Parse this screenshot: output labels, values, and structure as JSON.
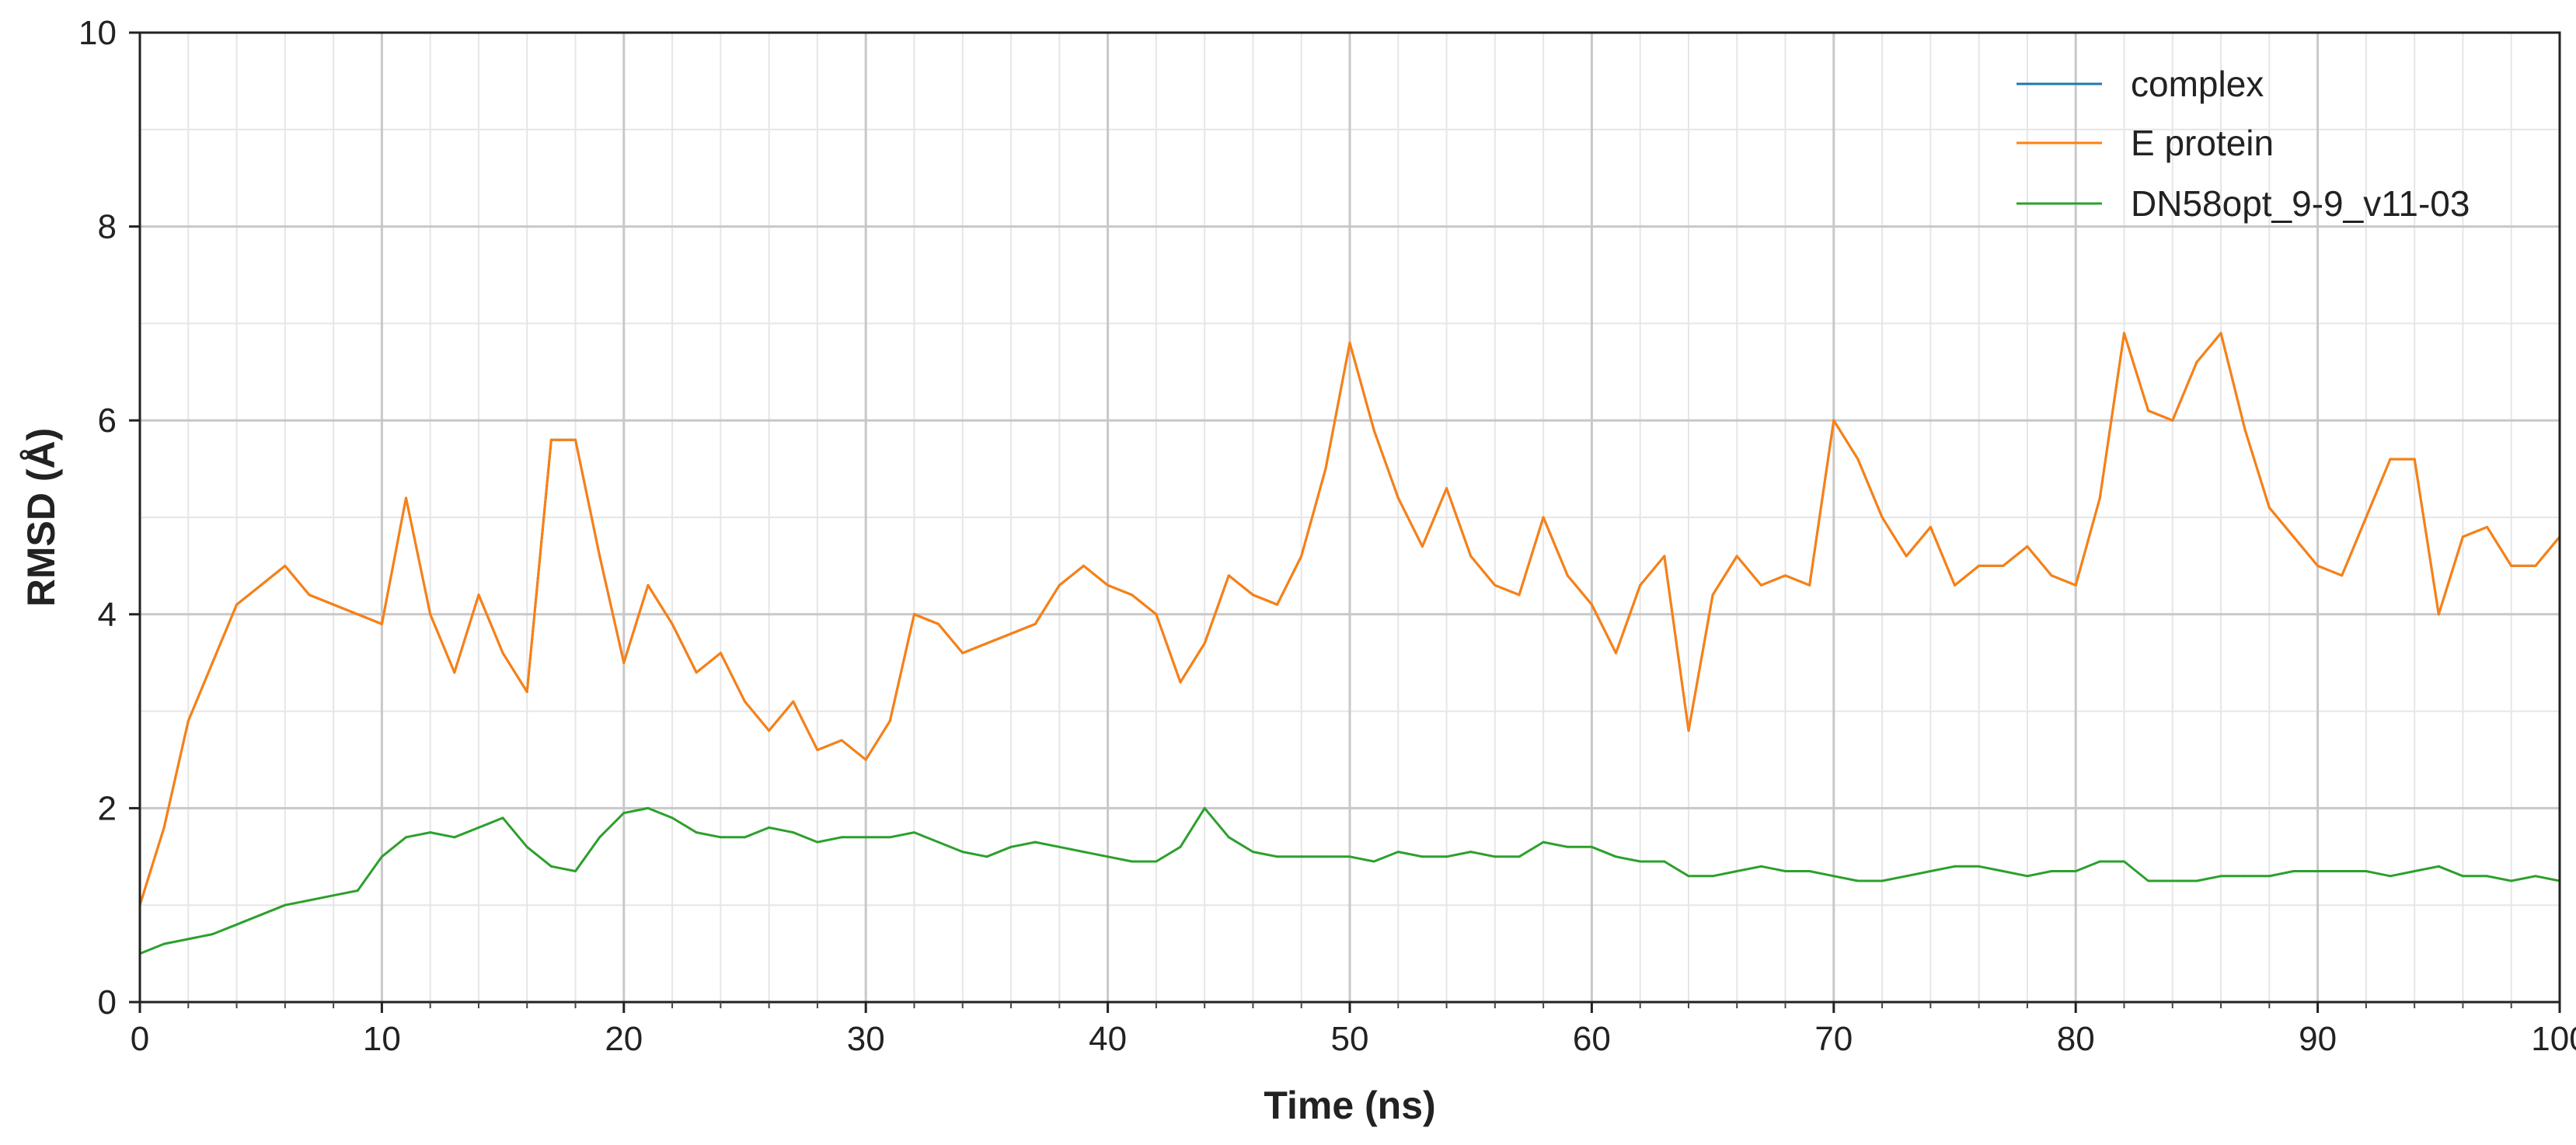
{
  "chart_data": {
    "type": "line",
    "title": "",
    "xlabel": "Time (ns)",
    "ylabel": "RMSD (Å)",
    "xlim": [
      0,
      100
    ],
    "ylim": [
      0,
      10
    ],
    "x_ticks": [
      "0",
      "10",
      "20",
      "30",
      "40",
      "50",
      "60",
      "70",
      "80",
      "90",
      "100"
    ],
    "y_ticks": [
      "0",
      "2",
      "4",
      "6",
      "8",
      "10"
    ],
    "grid": "major and minor",
    "legend_position": "top-right",
    "x": [
      0,
      1,
      2,
      3,
      4,
      5,
      6,
      7,
      8,
      9,
      10,
      11,
      12,
      13,
      14,
      15,
      16,
      17,
      18,
      19,
      20,
      21,
      22,
      23,
      24,
      25,
      26,
      27,
      28,
      29,
      30,
      31,
      32,
      33,
      34,
      35,
      36,
      37,
      38,
      39,
      40,
      41,
      42,
      43,
      44,
      45,
      46,
      47,
      48,
      49,
      50,
      51,
      52,
      53,
      54,
      55,
      56,
      57,
      58,
      59,
      60,
      61,
      62,
      63,
      64,
      65,
      66,
      67,
      68,
      69,
      70,
      71,
      72,
      73,
      74,
      75,
      76,
      77,
      78,
      79,
      80,
      81,
      82,
      83,
      84,
      85,
      86,
      87,
      88,
      89,
      90,
      91,
      92,
      93,
      94,
      95,
      96,
      97,
      98,
      99,
      100
    ],
    "series": [
      {
        "name": "complex",
        "color": "#1f77b4",
        "values": [
          1.0,
          1.8,
          2.9,
          3.5,
          4.1,
          4.3,
          4.5,
          4.2,
          4.1,
          4.0,
          3.9,
          5.2,
          4.0,
          3.4,
          4.2,
          3.6,
          3.2,
          5.8,
          5.8,
          4.6,
          3.5,
          4.3,
          3.9,
          3.4,
          3.6,
          3.1,
          2.8,
          3.1,
          2.6,
          2.7,
          2.5,
          2.9,
          4.0,
          3.9,
          3.6,
          3.7,
          3.8,
          3.9,
          4.3,
          4.5,
          4.3,
          4.2,
          4.0,
          3.3,
          3.7,
          4.4,
          4.2,
          4.1,
          4.6,
          5.5,
          6.8,
          5.9,
          5.2,
          4.7,
          5.3,
          4.6,
          4.3,
          4.2,
          5.0,
          4.4,
          4.1,
          3.6,
          4.3,
          4.6,
          2.8,
          4.2,
          4.6,
          4.3,
          4.4,
          4.3,
          6.0,
          5.6,
          5.0,
          4.6,
          4.9,
          4.3,
          4.5,
          4.5,
          4.7,
          4.4,
          4.3,
          5.2,
          6.9,
          6.1,
          6.0,
          6.6,
          6.9,
          5.9,
          5.1,
          4.8,
          4.5,
          4.4,
          5.0,
          5.6,
          5.6,
          4.0,
          4.8,
          4.9,
          4.5,
          4.5,
          4.8
        ]
      },
      {
        "name": "E protein",
        "color": "#ff7f0e",
        "values": [
          1.0,
          1.8,
          2.9,
          3.5,
          4.1,
          4.3,
          4.5,
          4.2,
          4.1,
          4.0,
          3.9,
          5.2,
          4.0,
          3.4,
          4.2,
          3.6,
          3.2,
          5.8,
          5.8,
          4.6,
          3.5,
          4.3,
          3.9,
          3.4,
          3.6,
          3.1,
          2.8,
          3.1,
          2.6,
          2.7,
          2.5,
          2.9,
          4.0,
          3.9,
          3.6,
          3.7,
          3.8,
          3.9,
          4.3,
          4.5,
          4.3,
          4.2,
          4.0,
          3.3,
          3.7,
          4.4,
          4.2,
          4.1,
          4.6,
          5.5,
          6.8,
          5.9,
          5.2,
          4.7,
          5.3,
          4.6,
          4.3,
          4.2,
          5.0,
          4.4,
          4.1,
          3.6,
          4.3,
          4.6,
          2.8,
          4.2,
          4.6,
          4.3,
          4.4,
          4.3,
          6.0,
          5.6,
          5.0,
          4.6,
          4.9,
          4.3,
          4.5,
          4.5,
          4.7,
          4.4,
          4.3,
          5.2,
          6.9,
          6.1,
          6.0,
          6.6,
          6.9,
          5.9,
          5.1,
          4.8,
          4.5,
          4.4,
          5.0,
          5.6,
          5.6,
          4.0,
          4.8,
          4.9,
          4.5,
          4.5,
          4.8
        ]
      },
      {
        "name": "DN58opt_9-9_v11-03",
        "color": "#2ca02c",
        "values": [
          0.5,
          0.6,
          0.65,
          0.7,
          0.8,
          0.9,
          1.0,
          1.05,
          1.1,
          1.15,
          1.5,
          1.7,
          1.75,
          1.7,
          1.8,
          1.9,
          1.6,
          1.4,
          1.35,
          1.7,
          1.95,
          2.0,
          1.9,
          1.75,
          1.7,
          1.7,
          1.8,
          1.75,
          1.65,
          1.7,
          1.7,
          1.7,
          1.75,
          1.65,
          1.55,
          1.5,
          1.6,
          1.65,
          1.6,
          1.55,
          1.5,
          1.45,
          1.45,
          1.6,
          2.0,
          1.7,
          1.55,
          1.5,
          1.5,
          1.5,
          1.5,
          1.45,
          1.55,
          1.5,
          1.5,
          1.55,
          1.5,
          1.5,
          1.65,
          1.6,
          1.6,
          1.5,
          1.45,
          1.45,
          1.3,
          1.3,
          1.35,
          1.4,
          1.35,
          1.35,
          1.3,
          1.25,
          1.25,
          1.3,
          1.35,
          1.4,
          1.4,
          1.35,
          1.3,
          1.35,
          1.35,
          1.45,
          1.45,
          1.25,
          1.25,
          1.25,
          1.3,
          1.3,
          1.3,
          1.35,
          1.35,
          1.35,
          1.35,
          1.3,
          1.35,
          1.4,
          1.3,
          1.3,
          1.25,
          1.3,
          1.25
        ]
      }
    ]
  }
}
